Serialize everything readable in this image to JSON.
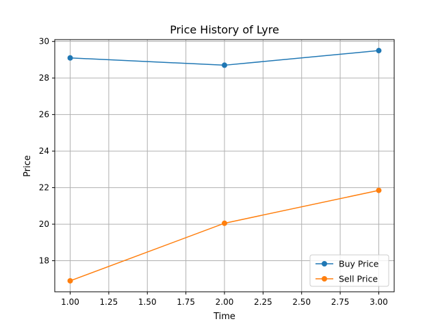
{
  "chart_data": {
    "type": "line",
    "title": "Price History of Lyre",
    "xlabel": "Time",
    "ylabel": "Price",
    "x": [
      1,
      2,
      3
    ],
    "xlim": [
      0.9,
      3.1
    ],
    "ylim": [
      16.3,
      30.1
    ],
    "xticks": [
      1.0,
      1.25,
      1.5,
      1.75,
      2.0,
      2.25,
      2.5,
      2.75,
      3.0
    ],
    "xtick_labels": [
      "1.00",
      "1.25",
      "1.50",
      "1.75",
      "2.00",
      "2.25",
      "2.50",
      "2.75",
      "3.00"
    ],
    "yticks": [
      18,
      20,
      22,
      24,
      26,
      28,
      30
    ],
    "ytick_labels": [
      "18",
      "20",
      "22",
      "24",
      "26",
      "28",
      "30"
    ],
    "grid": true,
    "legend_position": "bottom-right",
    "series": [
      {
        "name": "Buy Price",
        "color": "#1f77b4",
        "marker": "circle",
        "values": [
          29.1,
          28.7,
          29.5
        ]
      },
      {
        "name": "Sell Price",
        "color": "#ff7f0e",
        "marker": "circle",
        "values": [
          16.9,
          20.05,
          21.85
        ]
      }
    ]
  }
}
